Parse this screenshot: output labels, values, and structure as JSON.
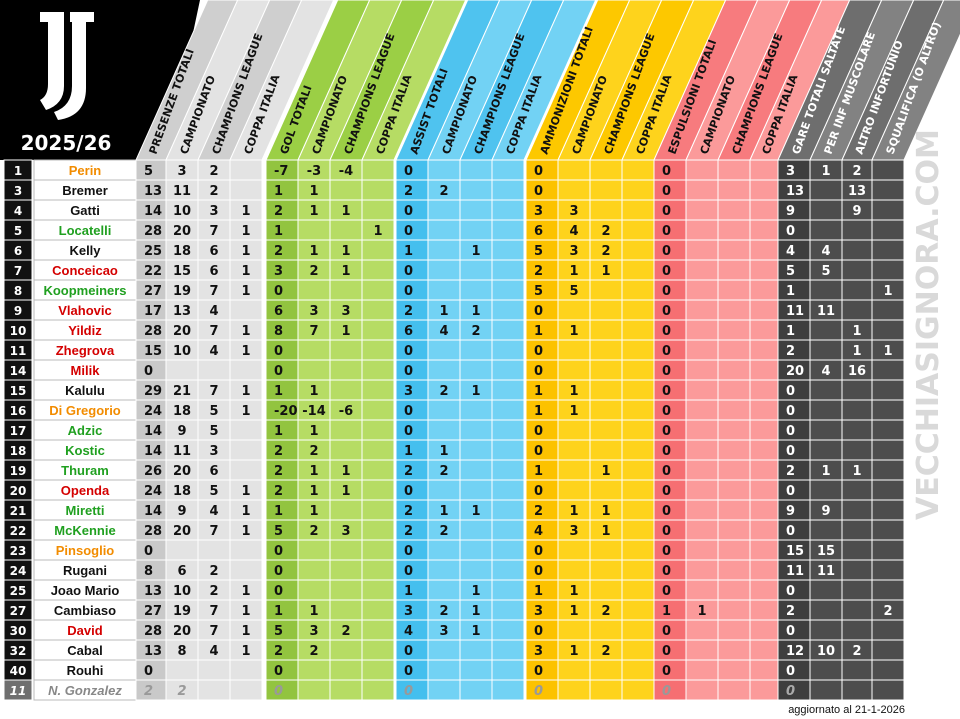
{
  "season": "2025/26",
  "watermark": "VECCHIASIGNORA.COM",
  "updated": "aggiornato al 21-1-2026",
  "columns": [
    {
      "label": "PRESENZE TOTALI",
      "group": "pres"
    },
    {
      "label": "CAMPIONATO",
      "group": "pres"
    },
    {
      "label": "CHAMPIONS LEAGUE",
      "group": "pres"
    },
    {
      "label": "COPPA ITALIA",
      "group": "pres"
    },
    {
      "label": "GOL TOTALI",
      "group": "gol"
    },
    {
      "label": "CAMPIONATO",
      "group": "gol"
    },
    {
      "label": "CHAMPIONS LEAGUE",
      "group": "gol"
    },
    {
      "label": "COPPA ITALIA",
      "group": "gol"
    },
    {
      "label": "ASSIST TOTALI",
      "group": "ast"
    },
    {
      "label": "CAMPIONATO",
      "group": "ast"
    },
    {
      "label": "CHAMPIONS LEAGUE",
      "group": "ast"
    },
    {
      "label": "COPPA ITALIA",
      "group": "ast"
    },
    {
      "label": "AMMONIZIONI TOTALI",
      "group": "amm"
    },
    {
      "label": "CAMPIONATO",
      "group": "amm"
    },
    {
      "label": "CHAMPIONS LEAGUE",
      "group": "amm"
    },
    {
      "label": "COPPA ITALIA",
      "group": "amm"
    },
    {
      "label": "ESPULSIONI TOTALI",
      "group": "esp"
    },
    {
      "label": "CAMPIONATO",
      "group": "esp"
    },
    {
      "label": "CHAMPIONS LEAGUE",
      "group": "esp"
    },
    {
      "label": "COPPA ITALIA",
      "group": "esp"
    },
    {
      "label": "GARE TOTALI SALTATE",
      "group": "sal"
    },
    {
      "label": "PER INF MUSCOLARE",
      "group": "sal"
    },
    {
      "label": "ALTRO INFORTUNIO",
      "group": "sal"
    },
    {
      "label": "SQUALIFICA (O ALTRO)",
      "group": "sal"
    }
  ],
  "colors": {
    "pres": {
      "light": "#e3e3e3",
      "dark": "#c9c9c9",
      "header": "#cfcfcf"
    },
    "gol": {
      "light": "#b6dc64",
      "dark": "#92c43f",
      "header": "#9bcf45"
    },
    "ast": {
      "light": "#72d2f4",
      "dark": "#44bfee",
      "header": "#4fc3ef"
    },
    "amm": {
      "light": "#fed31c",
      "dark": "#fcc200",
      "header": "#fdc800"
    },
    "esp": {
      "light": "#fb9a9a",
      "dark": "#f66f72",
      "header": "#f77b7e"
    },
    "sal": {
      "light": "#4d4d4d",
      "dark": "#3e3e3e",
      "header": "#6a6a6a"
    },
    "jersey_bg": "#111111",
    "name_orange": "#f28c00",
    "name_black": "#111111",
    "name_green": "#20a020",
    "name_red": "#d40000",
    "name_grey": "#888888"
  },
  "players": [
    {
      "no": "1",
      "name": "Perin",
      "c": "orange",
      "v": [
        "5",
        "3",
        "2",
        "",
        "-7",
        "-3",
        "-4",
        "",
        "0",
        "",
        "",
        "",
        "0",
        "",
        "",
        "",
        "0",
        "",
        "",
        "",
        "3",
        "1",
        "2",
        ""
      ]
    },
    {
      "no": "3",
      "name": "Bremer",
      "c": "black",
      "v": [
        "13",
        "11",
        "2",
        "",
        "1",
        "1",
        "",
        "",
        "2",
        "2",
        "",
        "",
        "0",
        "",
        "",
        "",
        "0",
        "",
        "",
        "",
        "13",
        "",
        "13",
        ""
      ]
    },
    {
      "no": "4",
      "name": "Gatti",
      "c": "black",
      "v": [
        "14",
        "10",
        "3",
        "1",
        "2",
        "1",
        "1",
        "",
        "0",
        "",
        "",
        "",
        "3",
        "3",
        "",
        "",
        "0",
        "",
        "",
        "",
        "9",
        "",
        "9",
        ""
      ]
    },
    {
      "no": "5",
      "name": "Locatelli",
      "c": "green",
      "v": [
        "28",
        "20",
        "7",
        "1",
        "1",
        "",
        "",
        "1",
        "0",
        "",
        "",
        "",
        "6",
        "4",
        "2",
        "",
        "0",
        "",
        "",
        "",
        "0",
        "",
        "",
        ""
      ]
    },
    {
      "no": "6",
      "name": "Kelly",
      "c": "black",
      "v": [
        "25",
        "18",
        "6",
        "1",
        "2",
        "1",
        "1",
        "",
        "1",
        "",
        "1",
        "",
        "5",
        "3",
        "2",
        "",
        "0",
        "",
        "",
        "",
        "4",
        "4",
        "",
        ""
      ]
    },
    {
      "no": "7",
      "name": "Conceicao",
      "c": "red",
      "v": [
        "22",
        "15",
        "6",
        "1",
        "3",
        "2",
        "1",
        "",
        "0",
        "",
        "",
        "",
        "2",
        "1",
        "1",
        "",
        "0",
        "",
        "",
        "",
        "5",
        "5",
        "",
        ""
      ]
    },
    {
      "no": "8",
      "name": "Koopmeiners",
      "c": "green",
      "v": [
        "27",
        "19",
        "7",
        "1",
        "0",
        "",
        "",
        "",
        "0",
        "",
        "",
        "",
        "5",
        "5",
        "",
        "",
        "0",
        "",
        "",
        "",
        "1",
        "",
        "",
        "1"
      ]
    },
    {
      "no": "9",
      "name": "Vlahovic",
      "c": "red",
      "v": [
        "17",
        "13",
        "4",
        "",
        "6",
        "3",
        "3",
        "",
        "2",
        "1",
        "1",
        "",
        "0",
        "",
        "",
        "",
        "0",
        "",
        "",
        "",
        "11",
        "11",
        "",
        ""
      ]
    },
    {
      "no": "10",
      "name": "Yildiz",
      "c": "red",
      "v": [
        "28",
        "20",
        "7",
        "1",
        "8",
        "7",
        "1",
        "",
        "6",
        "4",
        "2",
        "",
        "1",
        "1",
        "",
        "",
        "0",
        "",
        "",
        "",
        "1",
        "",
        "1",
        ""
      ]
    },
    {
      "no": "11",
      "name": "Zhegrova",
      "c": "red",
      "v": [
        "15",
        "10",
        "4",
        "1",
        "0",
        "",
        "",
        "",
        "0",
        "",
        "",
        "",
        "0",
        "",
        "",
        "",
        "0",
        "",
        "",
        "",
        "2",
        "",
        "1",
        "1"
      ]
    },
    {
      "no": "14",
      "name": "Milik",
      "c": "red",
      "v": [
        "0",
        "",
        "",
        "",
        "0",
        "",
        "",
        "",
        "0",
        "",
        "",
        "",
        "0",
        "",
        "",
        "",
        "0",
        "",
        "",
        "",
        "20",
        "4",
        "16",
        ""
      ]
    },
    {
      "no": "15",
      "name": "Kalulu",
      "c": "black",
      "v": [
        "29",
        "21",
        "7",
        "1",
        "1",
        "1",
        "",
        "",
        "3",
        "2",
        "1",
        "",
        "1",
        "1",
        "",
        "",
        "0",
        "",
        "",
        "",
        "0",
        "",
        "",
        ""
      ]
    },
    {
      "no": "16",
      "name": "Di Gregorio",
      "c": "orange",
      "v": [
        "24",
        "18",
        "5",
        "1",
        "-20",
        "-14",
        "-6",
        "",
        "0",
        "",
        "",
        "",
        "1",
        "1",
        "",
        "",
        "0",
        "",
        "",
        "",
        "0",
        "",
        "",
        ""
      ]
    },
    {
      "no": "17",
      "name": "Adzic",
      "c": "green",
      "v": [
        "14",
        "9",
        "5",
        "",
        "1",
        "1",
        "",
        "",
        "0",
        "",
        "",
        "",
        "0",
        "",
        "",
        "",
        "0",
        "",
        "",
        "",
        "0",
        "",
        "",
        ""
      ]
    },
    {
      "no": "18",
      "name": "Kostic",
      "c": "green",
      "v": [
        "14",
        "11",
        "3",
        "",
        "2",
        "2",
        "",
        "",
        "1",
        "1",
        "",
        "",
        "0",
        "",
        "",
        "",
        "0",
        "",
        "",
        "",
        "0",
        "",
        "",
        ""
      ]
    },
    {
      "no": "19",
      "name": "Thuram",
      "c": "green",
      "v": [
        "26",
        "20",
        "6",
        "",
        "2",
        "1",
        "1",
        "",
        "2",
        "2",
        "",
        "",
        "1",
        "",
        "1",
        "",
        "0",
        "",
        "",
        "",
        "2",
        "1",
        "1",
        ""
      ]
    },
    {
      "no": "20",
      "name": "Openda",
      "c": "red",
      "v": [
        "24",
        "18",
        "5",
        "1",
        "2",
        "1",
        "1",
        "",
        "0",
        "",
        "",
        "",
        "0",
        "",
        "",
        "",
        "0",
        "",
        "",
        "",
        "0",
        "",
        "",
        ""
      ]
    },
    {
      "no": "21",
      "name": "Miretti",
      "c": "green",
      "v": [
        "14",
        "9",
        "4",
        "1",
        "1",
        "1",
        "",
        "",
        "2",
        "1",
        "1",
        "",
        "2",
        "1",
        "1",
        "",
        "0",
        "",
        "",
        "",
        "9",
        "9",
        "",
        ""
      ]
    },
    {
      "no": "22",
      "name": "McKennie",
      "c": "green",
      "v": [
        "28",
        "20",
        "7",
        "1",
        "5",
        "2",
        "3",
        "",
        "2",
        "2",
        "",
        "",
        "4",
        "3",
        "1",
        "",
        "0",
        "",
        "",
        "",
        "0",
        "",
        "",
        ""
      ]
    },
    {
      "no": "23",
      "name": "Pinsoglio",
      "c": "orange",
      "v": [
        "0",
        "",
        "",
        "",
        "0",
        "",
        "",
        "",
        "0",
        "",
        "",
        "",
        "0",
        "",
        "",
        "",
        "0",
        "",
        "",
        "",
        "15",
        "15",
        "",
        ""
      ]
    },
    {
      "no": "24",
      "name": "Rugani",
      "c": "black",
      "v": [
        "8",
        "6",
        "2",
        "",
        "0",
        "",
        "",
        "",
        "0",
        "",
        "",
        "",
        "0",
        "",
        "",
        "",
        "0",
        "",
        "",
        "",
        "11",
        "11",
        "",
        ""
      ]
    },
    {
      "no": "25",
      "name": "Joao Mario",
      "c": "black",
      "v": [
        "13",
        "10",
        "2",
        "1",
        "0",
        "",
        "",
        "",
        "1",
        "",
        "1",
        "",
        "1",
        "1",
        "",
        "",
        "0",
        "",
        "",
        "",
        "0",
        "",
        "",
        ""
      ]
    },
    {
      "no": "27",
      "name": "Cambiaso",
      "c": "black",
      "v": [
        "27",
        "19",
        "7",
        "1",
        "1",
        "1",
        "",
        "",
        "3",
        "2",
        "1",
        "",
        "3",
        "1",
        "2",
        "",
        "1",
        "1",
        "",
        "",
        "2",
        "",
        "",
        "2"
      ]
    },
    {
      "no": "30",
      "name": "David",
      "c": "red",
      "v": [
        "28",
        "20",
        "7",
        "1",
        "5",
        "3",
        "2",
        "",
        "4",
        "3",
        "1",
        "",
        "0",
        "",
        "",
        "",
        "0",
        "",
        "",
        "",
        "0",
        "",
        "",
        ""
      ]
    },
    {
      "no": "32",
      "name": "Cabal",
      "c": "black",
      "v": [
        "13",
        "8",
        "4",
        "1",
        "2",
        "2",
        "",
        "",
        "0",
        "",
        "",
        "",
        "3",
        "1",
        "2",
        "",
        "0",
        "",
        "",
        "",
        "12",
        "10",
        "2",
        ""
      ]
    },
    {
      "no": "40",
      "name": "Rouhi",
      "c": "black",
      "v": [
        "0",
        "",
        "",
        "",
        "0",
        "",
        "",
        "",
        "0",
        "",
        "",
        "",
        "0",
        "",
        "",
        "",
        "0",
        "",
        "",
        "",
        "0",
        "",
        "",
        ""
      ]
    },
    {
      "no": "11",
      "name": "N. Gonzalez",
      "c": "grey",
      "v": [
        "2",
        "2",
        "",
        "",
        "0",
        "",
        "",
        "",
        "0",
        "",
        "",
        "",
        "0",
        "",
        "",
        "",
        "0",
        "",
        "",
        "",
        "0",
        "",
        "",
        ""
      ]
    }
  ]
}
